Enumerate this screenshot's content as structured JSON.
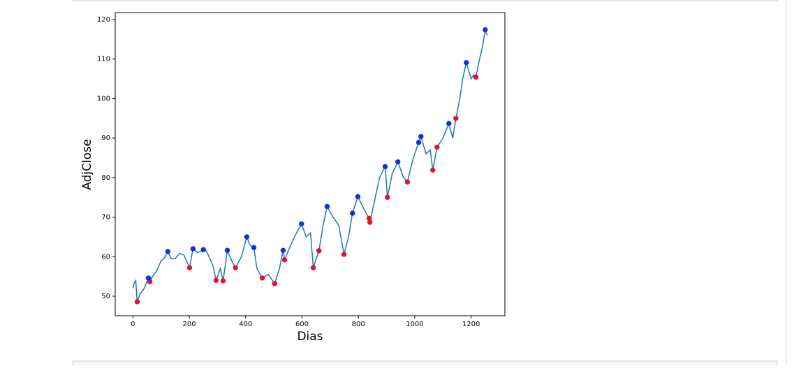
{
  "chart_data": {
    "type": "line",
    "xlabel": "Dias",
    "ylabel": "AdjClose",
    "xlim": [
      -62.85,
      1319.85
    ],
    "ylim": [
      45.06,
      121.76
    ],
    "xticks": [
      0,
      200,
      400,
      600,
      800,
      1000,
      1200
    ],
    "yticks": [
      50,
      60,
      70,
      80,
      90,
      100,
      110,
      120
    ],
    "line": {
      "color": "#1f77b4",
      "x": [
        0,
        5,
        10,
        15,
        25,
        40,
        55,
        60,
        70,
        85,
        100,
        110,
        124,
        135,
        150,
        165,
        180,
        190,
        201,
        213,
        230,
        250,
        260,
        270,
        285,
        295,
        310,
        320,
        335,
        350,
        364,
        385,
        404,
        415,
        429,
        440,
        459,
        480,
        503,
        520,
        533,
        538,
        560,
        580,
        598,
        615,
        630,
        640,
        660,
        675,
        689,
        710,
        730,
        749,
        765,
        779,
        798,
        820,
        838,
        841,
        860,
        875,
        895,
        903,
        920,
        940,
        960,
        974,
        995,
        1014,
        1022,
        1040,
        1055,
        1064,
        1079,
        1100,
        1121,
        1135,
        1146,
        1160,
        1170,
        1183,
        1200,
        1210,
        1217,
        1230,
        1240,
        1250,
        1257
      ],
      "values": [
        52.0,
        53.5,
        54.0,
        48.6,
        50.5,
        52.0,
        54.6,
        53.7,
        55.0,
        56.5,
        59.0,
        59.5,
        61.3,
        59.5,
        59.5,
        60.8,
        60.5,
        59.0,
        57.2,
        62.0,
        61.0,
        61.8,
        61.5,
        60.0,
        57.5,
        54.0,
        57.0,
        53.9,
        61.6,
        59.0,
        57.2,
        60.0,
        65.0,
        63.0,
        62.3,
        57.0,
        54.6,
        55.5,
        53.2,
        57.0,
        61.6,
        59.2,
        63.0,
        66.0,
        68.3,
        65.0,
        66.0,
        57.2,
        61.5,
        68.0,
        72.7,
        70.0,
        68.0,
        60.6,
        65.0,
        71.0,
        75.2,
        72.0,
        69.7,
        68.7,
        75.0,
        80.0,
        82.8,
        75.0,
        81.0,
        84.0,
        80.0,
        78.9,
        85.0,
        88.9,
        90.4,
        86.0,
        87.0,
        81.9,
        87.7,
        90.0,
        93.7,
        90.0,
        95.0,
        100.0,
        105.0,
        109.1,
        105.0,
        106.0,
        105.4,
        110.0,
        113.0,
        117.4,
        116.0
      ]
    },
    "markers": [
      {
        "color": "#e8102a",
        "x": [
          15,
          60,
          201,
          295,
          320,
          364,
          459,
          503,
          538,
          640,
          660,
          749,
          838,
          841,
          903,
          974,
          1064,
          1079,
          1146,
          1217
        ],
        "values": [
          48.6,
          53.7,
          57.2,
          54.0,
          53.9,
          57.2,
          54.6,
          53.2,
          59.2,
          57.2,
          61.5,
          60.6,
          69.7,
          68.7,
          75.0,
          78.9,
          81.9,
          87.7,
          95.0,
          105.4
        ]
      },
      {
        "color": "#1030e0",
        "x": [
          55,
          124,
          213,
          250,
          335,
          404,
          429,
          533,
          598,
          689,
          779,
          798,
          895,
          940,
          1014,
          1022,
          1121,
          1183,
          1250
        ],
        "values": [
          54.6,
          61.3,
          62.0,
          61.8,
          61.6,
          65.0,
          62.3,
          61.6,
          68.3,
          72.7,
          71.0,
          75.2,
          82.8,
          84.0,
          88.9,
          90.4,
          93.7,
          109.1,
          117.4
        ]
      }
    ]
  }
}
